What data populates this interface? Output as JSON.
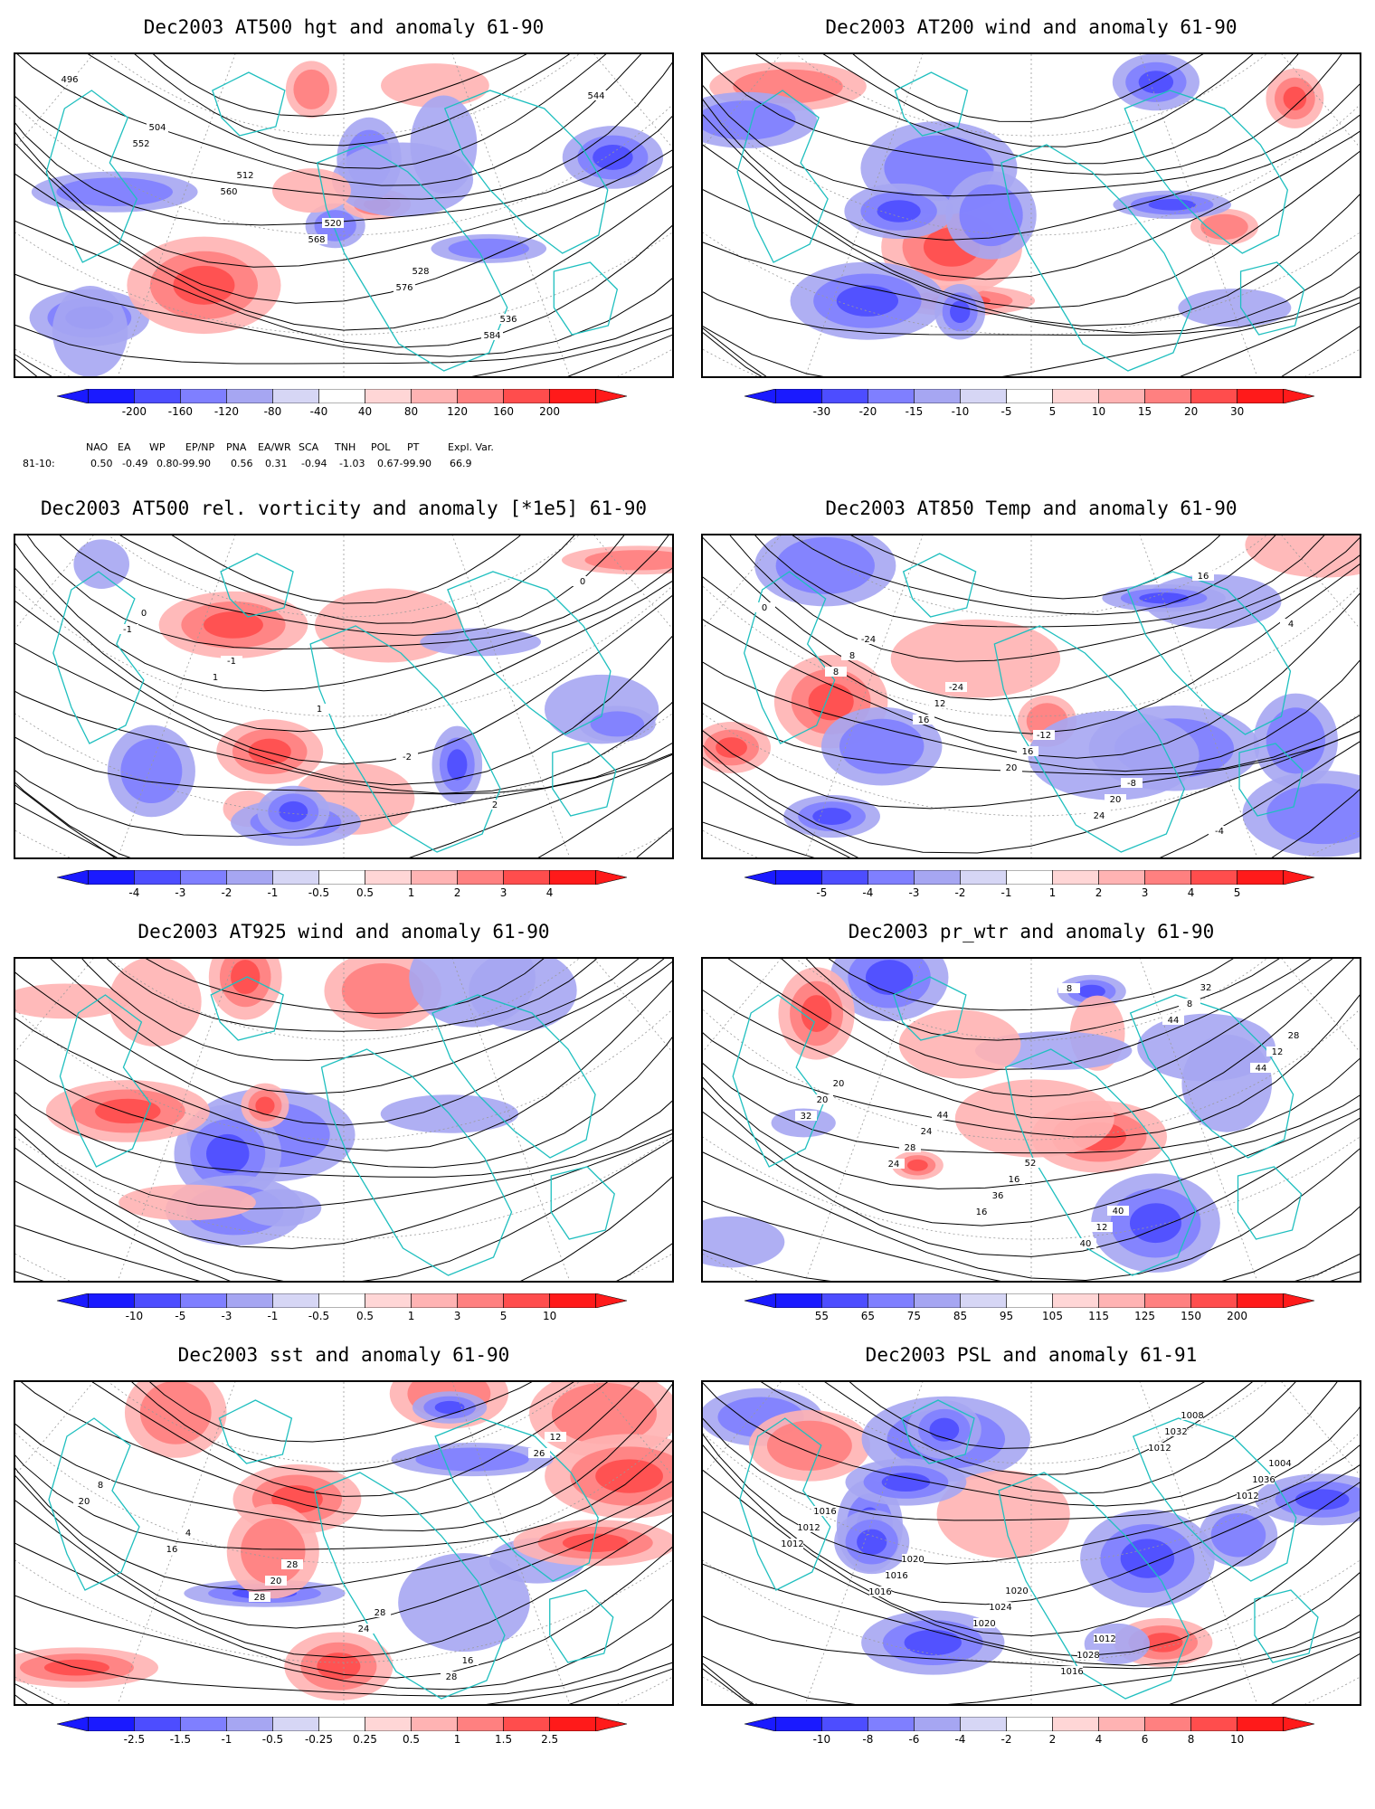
{
  "panels": [
    {
      "title": "Dec2003 AT500 hgt and anomaly 61-90",
      "colorbar": [
        "-200",
        "-160",
        "-120",
        "-80",
        "-40",
        "40",
        "80",
        "120",
        "160",
        "200"
      ],
      "contour_labels": [
        "496",
        "504",
        "512",
        "520",
        "528",
        "536",
        "544",
        "552",
        "560",
        "568",
        "576",
        "584"
      ]
    },
    {
      "title": "Dec2003 AT200 wind and anomaly 61-90",
      "colorbar": [
        "-30",
        "-20",
        "-15",
        "-10",
        "-5",
        "5",
        "10",
        "15",
        "20",
        "30"
      ],
      "contour_labels": []
    },
    {
      "title": "Dec2003 AT500 rel. vorticity and anomaly [*1e5] 61-90",
      "colorbar": [
        "-4",
        "-3",
        "-2",
        "-1",
        "-0.5",
        "0.5",
        "1",
        "2",
        "3",
        "4"
      ],
      "contour_labels": [
        "0",
        "-1",
        "1",
        "-2",
        "2",
        "0",
        "-1",
        "1"
      ]
    },
    {
      "title": "Dec2003 AT850 Temp and anomaly 61-90",
      "colorbar": [
        "-5",
        "-4",
        "-3",
        "-2",
        "-1",
        "1",
        "2",
        "3",
        "4",
        "5"
      ],
      "contour_labels": [
        "-24",
        "-24",
        "-12",
        "-8",
        "-4",
        "0",
        "8",
        "12",
        "16",
        "20",
        "16",
        "4",
        "8",
        "16",
        "20",
        "24"
      ]
    },
    {
      "title": "Dec2003 AT925 wind and anomaly 61-90",
      "colorbar": [
        "-10",
        "-5",
        "-3",
        "-1",
        "-0.5",
        "0.5",
        "1",
        "3",
        "5",
        "10"
      ],
      "contour_labels": []
    },
    {
      "title": "Dec2003 pr_wtr and anomaly 61-90",
      "colorbar": [
        "55",
        "65",
        "75",
        "85",
        "95",
        "105",
        "115",
        "125",
        "150",
        "200"
      ],
      "contour_labels": [
        "44",
        "52",
        "40",
        "32",
        "28",
        "20",
        "24",
        "16",
        "12",
        "8",
        "12",
        "20",
        "28",
        "36",
        "40",
        "44",
        "44",
        "32",
        "24",
        "16",
        "8"
      ]
    },
    {
      "title": "Dec2003 sst and anomaly 61-90",
      "colorbar": [
        "-2.5",
        "-1.5",
        "-1",
        "-0.5",
        "-0.25",
        "0.25",
        "0.5",
        "1",
        "1.5",
        "2.5"
      ],
      "contour_labels": [
        "28",
        "28",
        "16",
        "12",
        "8",
        "4",
        "20",
        "24",
        "28",
        "26",
        "20",
        "16",
        "28"
      ]
    },
    {
      "title": "Dec2003 PSL and anomaly 61-91",
      "colorbar": [
        "-10",
        "-8",
        "-6",
        "-4",
        "-2",
        "2",
        "4",
        "6",
        "8",
        "10"
      ],
      "contour_labels": [
        "1020",
        "1012",
        "1008",
        "1004",
        "1016",
        "1020",
        "1024",
        "1028",
        "1032",
        "1036",
        "1012",
        "1016",
        "1020",
        "1016",
        "1012",
        "1012",
        "1012",
        "1016"
      ]
    }
  ],
  "teleconnections": {
    "headers": [
      "NAO",
      "EA",
      "WP",
      "EP/NP",
      "PNA",
      "EA/WR",
      "SCA",
      "TNH",
      "POL",
      "PT",
      "Expl. Var."
    ],
    "row_label": "81-10:",
    "values": [
      "0.50",
      "-0.49",
      "0.80-99.90",
      "0.56",
      "0.31",
      "-0.94",
      "-1.03",
      "0.67-99.90",
      "66.9"
    ]
  },
  "colors": {
    "blues": [
      "#1a1aff",
      "#4d4dff",
      "#7f7fff",
      "#a6a6f2",
      "#d6d6f5"
    ],
    "reds": [
      "#ffd6d6",
      "#ffb3b3",
      "#ff8080",
      "#ff4d4d",
      "#ff1a1a"
    ],
    "coast": "#1fbfbf",
    "contour": "#000000",
    "grid": "#9a9a9a"
  }
}
